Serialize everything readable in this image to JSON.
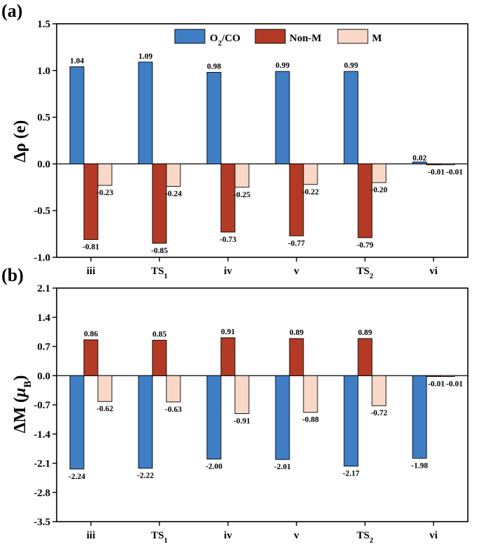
{
  "colors": {
    "o2co": "#3f7dc4",
    "nonm": "#b33a25",
    "m": "#f9d8c8"
  },
  "legend": [
    {
      "key": "o2co",
      "label_main": "O",
      "label_sub": "2",
      "label_rest": "/CO"
    },
    {
      "key": "nonm",
      "label_main": "Non-M",
      "label_sub": "",
      "label_rest": ""
    },
    {
      "key": "m",
      "label_main": "M",
      "label_sub": "",
      "label_rest": ""
    }
  ],
  "categories": [
    {
      "main": "iii",
      "sub": ""
    },
    {
      "main": "TS",
      "sub": "1"
    },
    {
      "main": "iv",
      "sub": ""
    },
    {
      "main": "v",
      "sub": ""
    },
    {
      "main": "TS",
      "sub": "2"
    },
    {
      "main": "vi",
      "sub": ""
    }
  ],
  "chart_data": [
    {
      "panel_label": "(a)",
      "type": "bar",
      "ylabel_symbol": "Δρ",
      "ylabel_unit": "(e)",
      "ylim": [
        -1.0,
        1.5
      ],
      "yticks": [
        "-1.0",
        "-0.5",
        "0.0",
        "0.5",
        "1.0",
        "1.5"
      ],
      "series": [
        {
          "name": "O2/CO",
          "key": "o2co",
          "values": [
            1.04,
            1.09,
            0.98,
            0.99,
            0.99,
            0.02
          ],
          "labels": [
            "1.04",
            "1.09",
            "0.98",
            "0.99",
            "0.99",
            "0.02"
          ]
        },
        {
          "name": "Non-M",
          "key": "nonm",
          "values": [
            -0.81,
            -0.85,
            -0.73,
            -0.77,
            -0.79,
            -0.01
          ],
          "labels": [
            "-0.81",
            "-0.85",
            "-0.73",
            "-0.77",
            "-0.79",
            "-0.01"
          ]
        },
        {
          "name": "M",
          "key": "m",
          "values": [
            -0.23,
            -0.24,
            -0.25,
            -0.22,
            -0.2,
            -0.01
          ],
          "labels": [
            "-0.23",
            "-0.24",
            "-0.25",
            "-0.22",
            "-0.20",
            "-0.01"
          ]
        }
      ]
    },
    {
      "panel_label": "(b)",
      "type": "bar",
      "ylabel_symbol": "ΔM",
      "ylabel_mu": "μ",
      "ylabel_sub": "B",
      "ylim": [
        -3.5,
        2.1
      ],
      "yticks": [
        "-3.5",
        "-2.8",
        "-2.1",
        "-1.4",
        "-0.7",
        "0.0",
        "0.7",
        "1.4",
        "2.1"
      ],
      "series": [
        {
          "name": "O2/CO",
          "key": "o2co",
          "values": [
            -2.24,
            -2.22,
            -2.0,
            -2.01,
            -2.17,
            -1.98
          ],
          "labels": [
            "-2.24",
            "-2.22",
            "-2.00",
            "-2.01",
            "-2.17",
            "-1.98"
          ]
        },
        {
          "name": "Non-M",
          "key": "nonm",
          "values": [
            0.86,
            0.85,
            0.91,
            0.89,
            0.89,
            -0.01
          ],
          "labels": [
            "0.86",
            "0.85",
            "0.91",
            "0.89",
            "0.89",
            "-0.01"
          ]
        },
        {
          "name": "M",
          "key": "m",
          "values": [
            -0.62,
            -0.63,
            -0.91,
            -0.88,
            -0.72,
            -0.01
          ],
          "labels": [
            "-0.62",
            "-0.63",
            "-0.91",
            "-0.88",
            "-0.72",
            "-0.01"
          ]
        }
      ]
    }
  ]
}
